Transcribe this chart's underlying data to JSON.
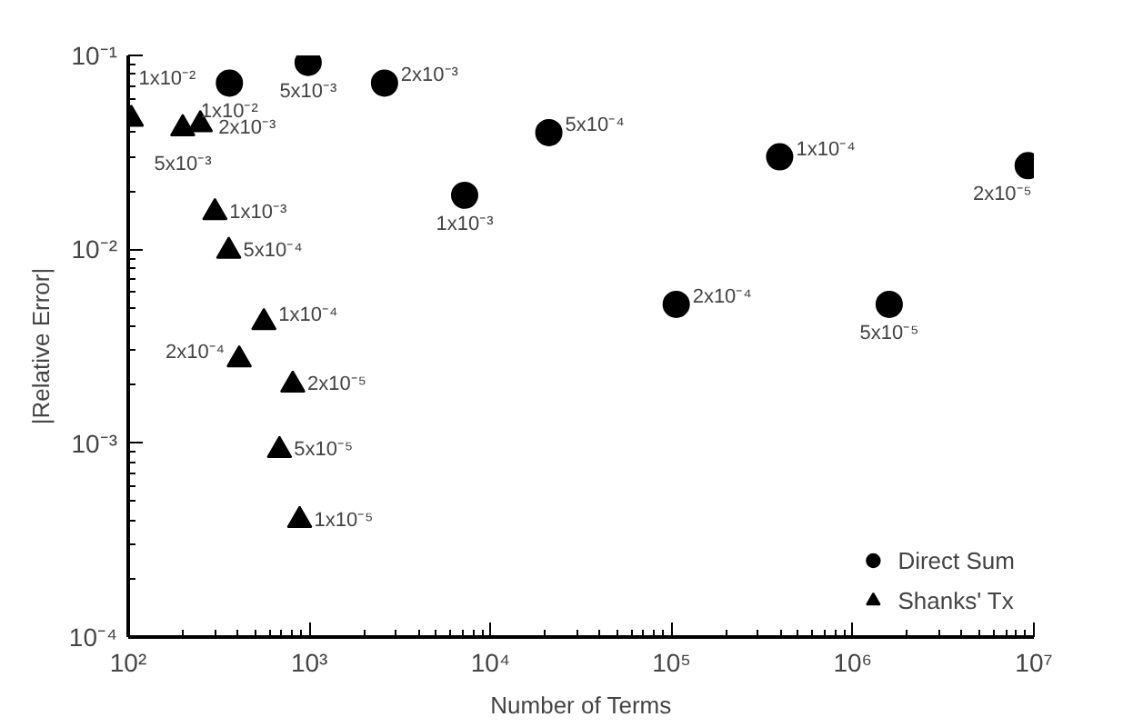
{
  "chart_data": {
    "type": "scatter",
    "xlabel": "Number of Terms",
    "ylabel": "|Relative Error|",
    "log": "xy",
    "grid": false,
    "legend": "bottom right",
    "xlim": [
      100,
      10000000
    ],
    "ylim": [
      0.0001,
      0.1
    ],
    "xticks": [
      {
        "value": 100,
        "label": "10²"
      },
      {
        "value": 1000,
        "label": "10³"
      },
      {
        "value": 10000,
        "label": "10⁴"
      },
      {
        "value": 100000,
        "label": "10⁵"
      },
      {
        "value": 1000000,
        "label": "10⁶"
      },
      {
        "value": 10000000,
        "label": "10⁷"
      }
    ],
    "yticks": [
      {
        "value": 0.0001,
        "label": "10⁻⁴"
      },
      {
        "value": 0.001,
        "label": "10⁻³"
      },
      {
        "value": 0.01,
        "label": "10⁻²"
      },
      {
        "value": 0.1,
        "label": "10⁻¹"
      }
    ],
    "series": [
      {
        "name": "Direct Sum",
        "color": "#000000",
        "marker": "circle",
        "x": [
          362,
          985,
          2600,
          7200,
          21000,
          106000,
          395000,
          1590000,
          9300000
        ],
        "values": [
          0.072,
          0.092,
          0.072,
          0.019,
          0.04,
          0.0052,
          0.03,
          0.0052,
          0.027
        ]
      },
      {
        "name": "Shanks' Tx",
        "color": "#000000",
        "marker": "triangle",
        "x": [
          104,
          200,
          250,
          301,
          359,
          561,
          410,
          810,
          684,
          884
        ],
        "values": [
          0.047,
          0.042,
          0.044,
          0.0155,
          0.0098,
          0.0042,
          0.0027,
          0.002,
          0.00092,
          0.0004
        ]
      }
    ],
    "annotations": [
      {
        "text": "1x10⁻²",
        "x": 362,
        "y": 0.072
      },
      {
        "text": "5x10⁻³",
        "x": 985,
        "y": 0.092
      },
      {
        "text": "2x10⁻³",
        "x": 2600,
        "y": 0.072
      },
      {
        "text": "1x10⁻³",
        "x": 7200,
        "y": 0.019
      },
      {
        "text": "5x10⁻⁴",
        "x": 21000,
        "y": 0.04
      },
      {
        "text": "2x10⁻⁴",
        "x": 106000,
        "y": 0.0052
      },
      {
        "text": "1x10⁻⁴",
        "x": 395000,
        "y": 0.03
      },
      {
        "text": "5x10⁻⁵",
        "x": 1590000,
        "y": 0.0052
      },
      {
        "text": "2x10⁻⁵",
        "x": 9300000,
        "y": 0.027
      },
      {
        "text": "1x10⁻²",
        "x": 104,
        "y": 0.047
      },
      {
        "text": "5x10⁻³",
        "x": 200,
        "y": 0.042
      },
      {
        "text": "2x10⁻³",
        "x": 250,
        "y": 0.044
      },
      {
        "text": "1x10⁻³",
        "x": 301,
        "y": 0.0155
      },
      {
        "text": "5x10⁻⁴",
        "x": 359,
        "y": 0.0098
      },
      {
        "text": "1x10⁻⁴",
        "x": 561,
        "y": 0.0042
      },
      {
        "text": "2x10⁻⁴",
        "x": 410,
        "y": 0.0027
      },
      {
        "text": "2x10⁻⁵",
        "x": 810,
        "y": 0.002
      },
      {
        "text": "5x10⁻⁵",
        "x": 684,
        "y": 0.00092
      },
      {
        "text": "1x10⁻⁵",
        "x": 884,
        "y": 0.0004
      }
    ]
  }
}
